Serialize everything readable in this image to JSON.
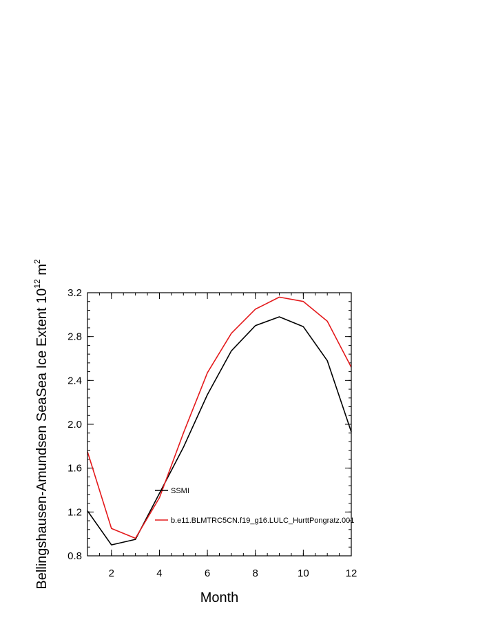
{
  "chart_data": {
    "type": "line",
    "title": "",
    "xlabel": "Month",
    "ylabel": {
      "main": "Bellingshausen-Amundsen SeaSea Ice Extent 10",
      "exp1": "12",
      "unit": " m",
      "exp2": "2"
    },
    "xlim": [
      1,
      12
    ],
    "ylim": [
      0.8,
      3.2
    ],
    "xticks": [
      2,
      4,
      6,
      8,
      10,
      12
    ],
    "xtick_labels": [
      "2",
      "4",
      "6",
      "8",
      "10",
      "12"
    ],
    "yticks": [
      0.8,
      1.2,
      1.6,
      2.0,
      2.4,
      2.8,
      3.2
    ],
    "ytick_labels": [
      "0.8",
      "1.2",
      "1.6",
      "2.0",
      "2.4",
      "2.8",
      "3.2"
    ],
    "x": [
      1,
      2,
      3,
      4,
      5,
      6,
      7,
      8,
      9,
      10,
      11,
      12
    ],
    "series": [
      {
        "name": "SSMI",
        "color": "#000000",
        "values": [
          1.21,
          0.9,
          0.95,
          1.37,
          1.79,
          2.27,
          2.67,
          2.9,
          2.98,
          2.89,
          2.58,
          1.93
        ]
      },
      {
        "name": "b.e11.BLMTRC5CN.f19_g16.LULC_HurttPongratz.001",
        "color": "#e41a1c",
        "values": [
          1.75,
          1.05,
          0.96,
          1.33,
          1.92,
          2.47,
          2.83,
          3.05,
          3.16,
          3.12,
          2.94,
          2.52
        ]
      }
    ],
    "legend_position": "inside-lower-center",
    "grid": false
  }
}
